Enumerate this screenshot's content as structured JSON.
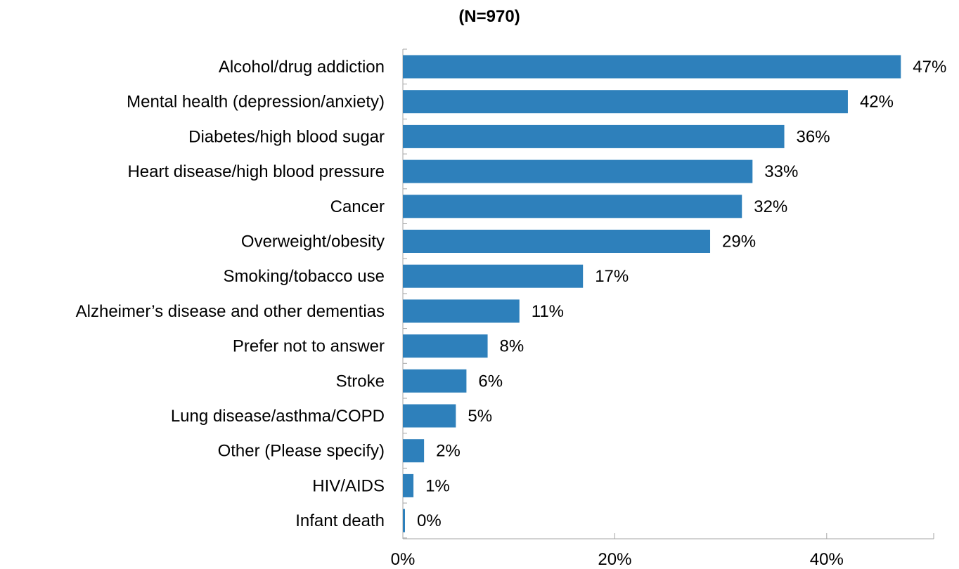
{
  "chart_data": {
    "type": "bar",
    "orientation": "horizontal",
    "title": "(N=970)",
    "xlabel": "",
    "ylabel": "",
    "categories": [
      "Alcohol/drug addiction",
      "Mental health (depression/anxiety)",
      "Diabetes/high blood sugar",
      "Heart disease/high blood pressure",
      "Cancer",
      "Overweight/obesity",
      "Smoking/tobacco use",
      "Alzheimer’s disease and other dementias",
      "Prefer not to answer",
      "Stroke",
      "Lung disease/asthma/COPD",
      "Other (Please specify)",
      "HIV/AIDS",
      "Infant death"
    ],
    "values": [
      47,
      42,
      36,
      33,
      32,
      29,
      17,
      11,
      8,
      6,
      5,
      2,
      1,
      0
    ],
    "data_labels": [
      "47%",
      "42%",
      "36%",
      "33%",
      "32%",
      "29%",
      "17%",
      "11%",
      "8%",
      "6%",
      "5%",
      "2%",
      "1%",
      "0%"
    ],
    "xlim": [
      0,
      50
    ],
    "x_ticks": [
      0,
      20,
      40
    ],
    "x_tick_labels": [
      "0%",
      "20%",
      "40%"
    ],
    "grid": false,
    "legend": "none",
    "bar_color": "#2E80BB",
    "axis_color": "#A6A6A6"
  }
}
